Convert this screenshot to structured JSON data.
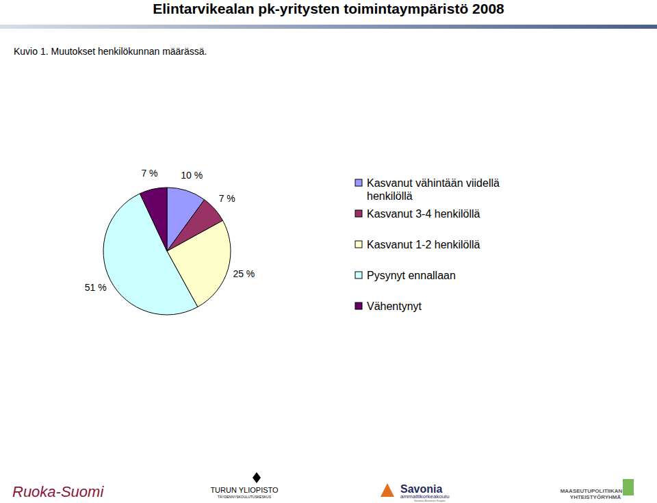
{
  "header": {
    "title": "Elintarvikealan pk-yritysten toimintaympäristö 2008"
  },
  "chart_data": {
    "type": "pie",
    "title": "Kuvio 1. Muutokset henkilökunnan määrässä.",
    "categories": [
      "Kasvanut vähintään viidellä henkilöllä",
      "Kasvanut 3-4 henkilöllä",
      "Kasvanut 1-2 henkilöllä",
      "Pysynyt ennallaan",
      "Vähentynyt"
    ],
    "values": [
      10,
      7,
      25,
      51,
      7
    ],
    "value_labels": [
      "10 %",
      "7 %",
      "25 %",
      "51 %",
      "7 %"
    ],
    "colors": [
      "#9999ff",
      "#993366",
      "#ffffcc",
      "#ccffff",
      "#660066"
    ],
    "data_labels": true,
    "legend": "right"
  },
  "footer": {
    "logos": [
      {
        "lines": [
          "Ruoka-Suomi"
        ]
      },
      {
        "lines": [
          "TURUN YLIOPISTO",
          "TÄYDENNYSKOULUTUSKESKUS"
        ]
      },
      {
        "lines": [
          "Savonia",
          "ammattikorkeakoulu",
          "Savonia Business Kuopio"
        ]
      },
      {
        "lines": [
          "MAASEUTUPOLITIIKAN",
          "YHTEISTYÖRYHMÄ"
        ]
      }
    ]
  }
}
